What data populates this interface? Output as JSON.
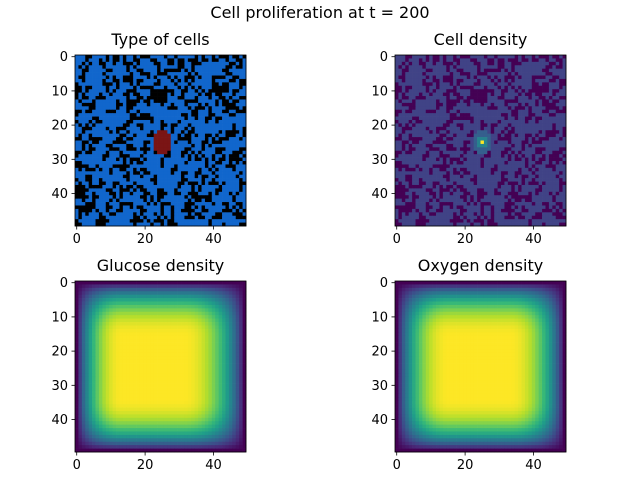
{
  "suptitle": "Cell proliferation at t = 200",
  "chart_data": [
    {
      "type": "heatmap",
      "title": "Type of cells",
      "grid_size": [
        50,
        50
      ],
      "xticks": [
        "0",
        "20",
        "40"
      ],
      "yticks": [
        "0",
        "10",
        "20",
        "30",
        "40"
      ],
      "xlim": [
        -0.5,
        49.5
      ],
      "ylim": [
        49.5,
        -0.5
      ],
      "categories": [
        "empty",
        "healthy",
        "cancer"
      ],
      "colors": {
        "empty": "#000000",
        "healthy": "#1166cc",
        "cancer": "#7a1515"
      },
      "healthy_fraction": 0.6,
      "cancer_region": {
        "x": [
          23,
          27
        ],
        "y": [
          22,
          28
        ]
      }
    },
    {
      "type": "heatmap",
      "title": "Cell density",
      "grid_size": [
        50,
        50
      ],
      "xticks": [
        "0",
        "20",
        "40"
      ],
      "yticks": [
        "0",
        "10",
        "20",
        "30",
        "40"
      ],
      "xlim": [
        -0.5,
        49.5
      ],
      "ylim": [
        49.5,
        -0.5
      ],
      "colormap": "viridis",
      "value_range": [
        0,
        1
      ],
      "background_level": 0.0,
      "healthy_level": 0.2,
      "cancer_peak": {
        "x": 25,
        "y": 25,
        "value": 1.0
      }
    },
    {
      "type": "heatmap",
      "title": "Glucose density",
      "grid_size": [
        50,
        50
      ],
      "xticks": [
        "0",
        "20",
        "40"
      ],
      "yticks": [
        "0",
        "10",
        "20",
        "30",
        "40"
      ],
      "xlim": [
        -0.5,
        49.5
      ],
      "ylim": [
        49.5,
        -0.5
      ],
      "colormap": "viridis",
      "value_range": [
        0,
        1
      ],
      "center": [
        21,
        25
      ],
      "pattern": "max at center, decreasing to minimum at edges"
    },
    {
      "type": "heatmap",
      "title": "Oxygen density",
      "grid_size": [
        50,
        50
      ],
      "xticks": [
        "0",
        "20",
        "40"
      ],
      "yticks": [
        "0",
        "10",
        "20",
        "30",
        "40"
      ],
      "xlim": [
        -0.5,
        49.5
      ],
      "ylim": [
        49.5,
        -0.5
      ],
      "colormap": "viridis",
      "value_range": [
        0,
        1
      ],
      "center": [
        24,
        25
      ],
      "pattern": "max at center, decreasing to minimum at edges"
    }
  ]
}
